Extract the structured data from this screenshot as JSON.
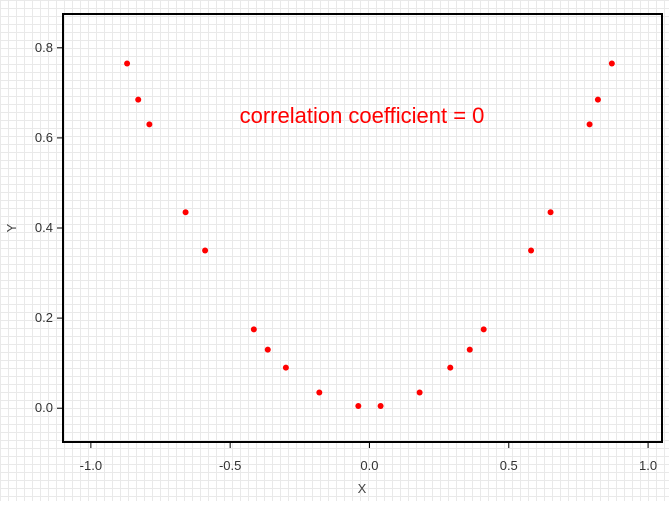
{
  "chart_data": {
    "type": "scatter",
    "title": "",
    "annotation": "correlation coefficient = 0",
    "xlabel": "X",
    "ylabel": "Y",
    "xlim": [
      -1.1,
      1.05
    ],
    "ylim": [
      -0.075,
      0.875
    ],
    "xticks": [
      -1.0,
      -0.5,
      0.0,
      0.5,
      1.0
    ],
    "xtick_labels": [
      "-1.0",
      "-0.5",
      "0.0",
      "0.5",
      "1.0"
    ],
    "yticks": [
      0.0,
      0.2,
      0.4,
      0.6,
      0.8
    ],
    "ytick_labels": [
      "0.0",
      "0.2",
      "0.4",
      "0.6",
      "0.8"
    ],
    "grid": true,
    "legend": "none",
    "marker_color": "#ff0000",
    "annotation_color": "#ff0000",
    "series": [
      {
        "x": [
          -0.87,
          -0.83,
          -0.79,
          -0.66,
          -0.59,
          -0.415,
          -0.365,
          -0.3,
          -0.18,
          -0.04,
          0.04,
          0.18,
          0.29,
          0.36,
          0.41,
          0.58,
          0.65,
          0.79,
          0.82,
          0.87
        ],
        "y": [
          0.765,
          0.685,
          0.63,
          0.435,
          0.35,
          0.175,
          0.13,
          0.09,
          0.035,
          0.005,
          0.005,
          0.035,
          0.09,
          0.13,
          0.175,
          0.35,
          0.435,
          0.63,
          0.685,
          0.765
        ]
      }
    ]
  }
}
